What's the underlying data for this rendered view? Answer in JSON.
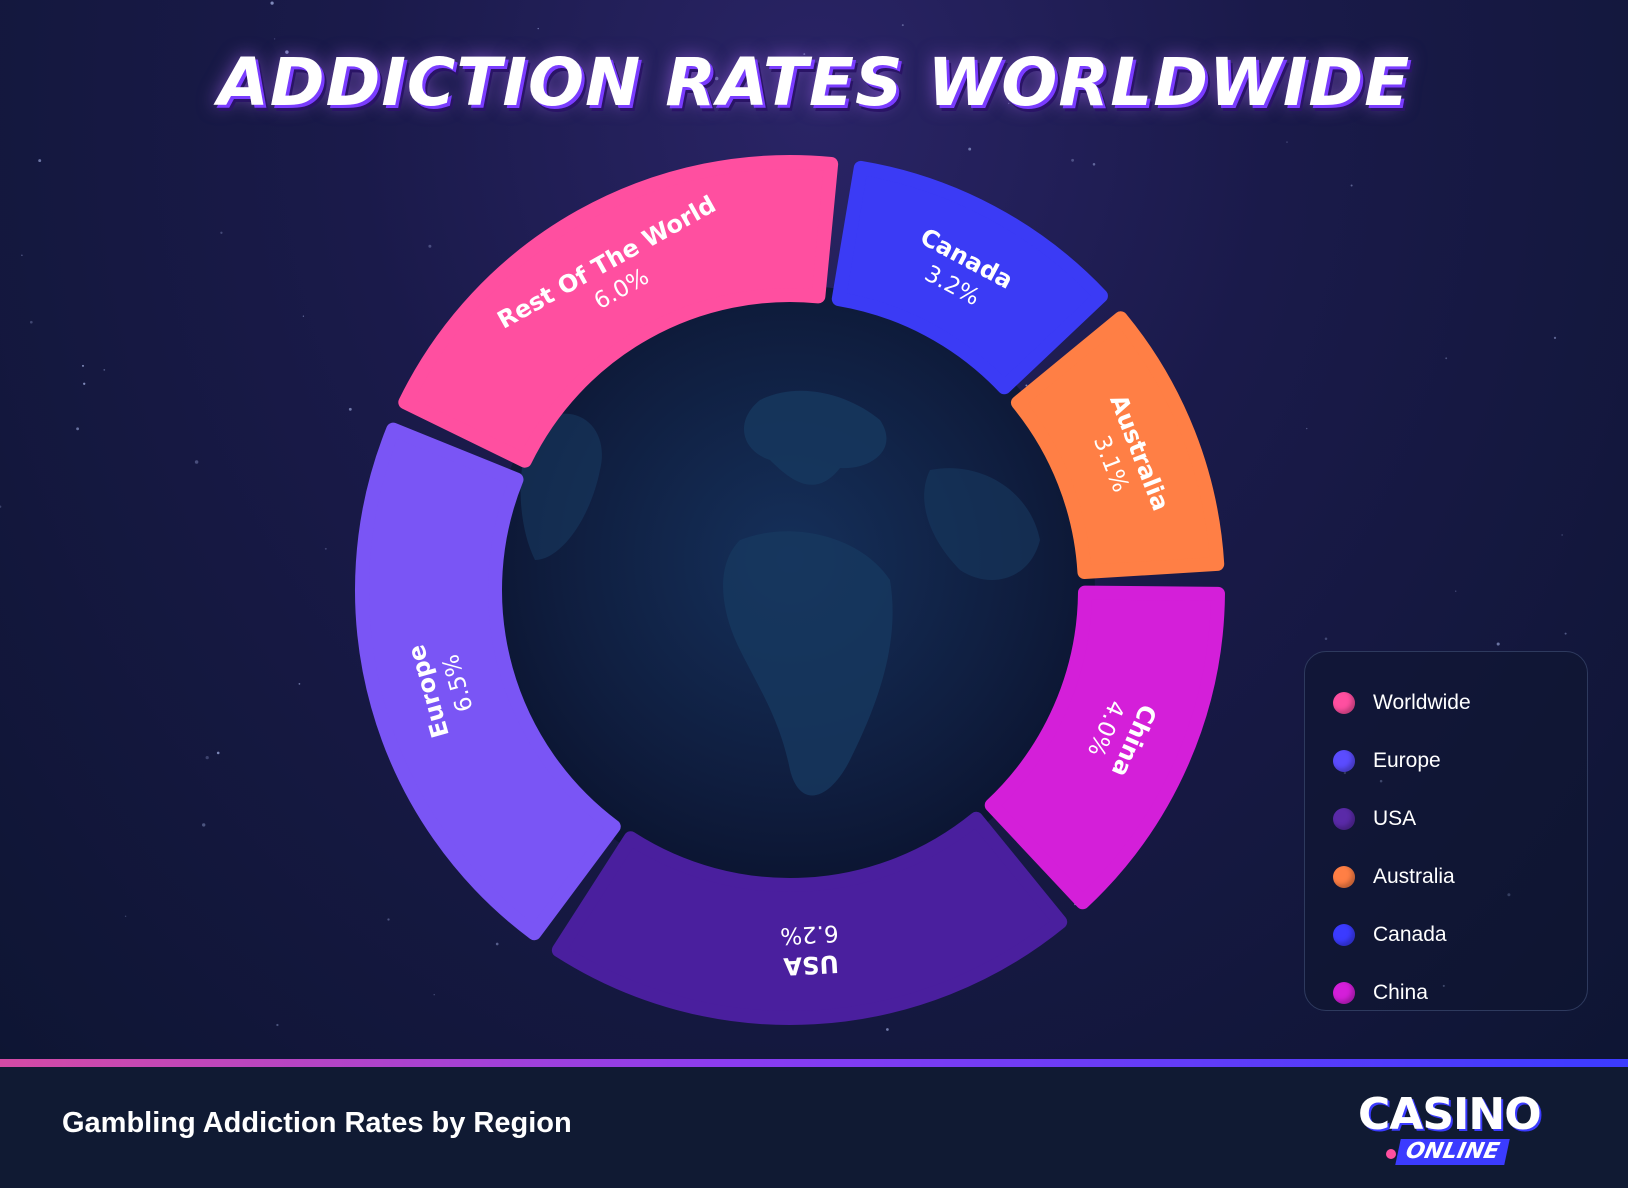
{
  "title": "ADDICTION RATES WORLDWIDE",
  "footer": {
    "caption": "Gambling Addiction Rates by Region",
    "logo_main": "CASINO",
    "logo_sub": "ONLINE"
  },
  "chart_data": {
    "type": "pie",
    "title": "ADDICTION RATES WORLDWIDE",
    "segments": [
      {
        "label": "Rest Of The World",
        "value": 6.0,
        "value_text": "6.0%",
        "color": "#ff4fa0"
      },
      {
        "label": "Canada",
        "value": 3.2,
        "value_text": "3.2%",
        "color": "#3b3bf5"
      },
      {
        "label": "Australia",
        "value": 3.1,
        "value_text": "3.1%",
        "color": "#ff7f45"
      },
      {
        "label": "China",
        "value": 4.0,
        "value_text": "4.0%",
        "color": "#d41fd9"
      },
      {
        "label": "USA",
        "value": 6.2,
        "value_text": "6.2%",
        "color": "#4a1f9e"
      },
      {
        "label": "Europe",
        "value": 6.5,
        "value_text": "6.5%",
        "color": "#7a55f5"
      }
    ],
    "legend": [
      {
        "label": "Worldwide",
        "color": "#ff4fa0"
      },
      {
        "label": "Europe",
        "color": "#5b4cff"
      },
      {
        "label": "USA",
        "color": "#5a2aa8"
      },
      {
        "label": "Australia",
        "color": "#ff7f45"
      },
      {
        "label": "Canada",
        "color": "#3b3bff"
      },
      {
        "label": "China",
        "color": "#d41fd9"
      }
    ],
    "legend_position": "right"
  }
}
